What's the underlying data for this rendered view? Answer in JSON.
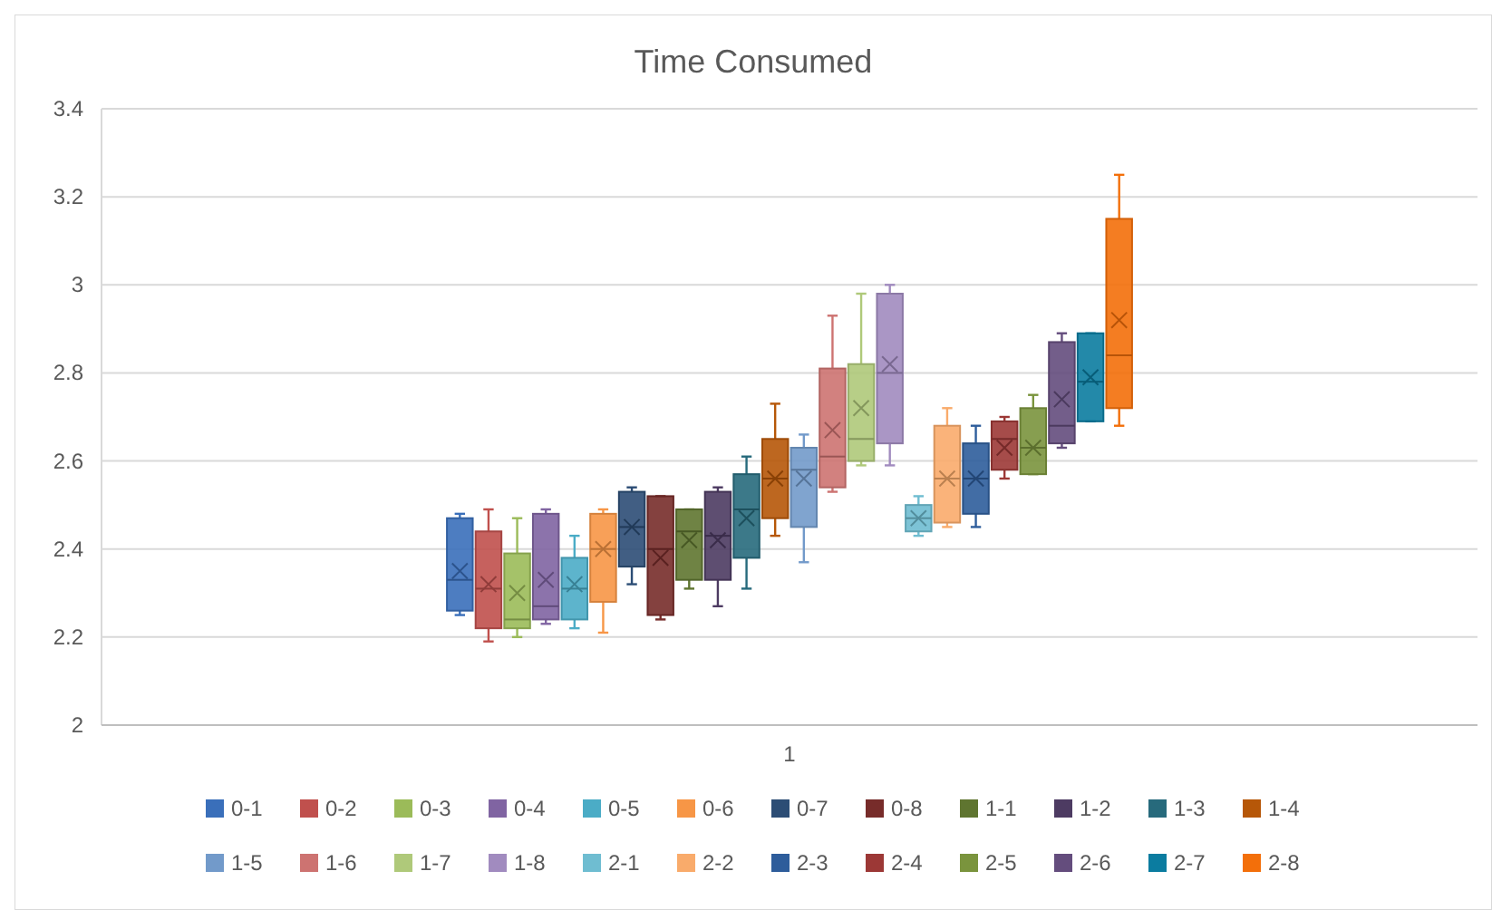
{
  "chart_data": {
    "type": "box",
    "title": "Time Consumed",
    "categories": [
      "1"
    ],
    "ylim": [
      2,
      3.4
    ],
    "yticks": [
      2,
      2.2,
      2.4,
      2.6,
      2.8,
      3,
      3.2,
      3.4
    ],
    "grid": "y",
    "legend": "bottom",
    "series": [
      {
        "name": "0-1",
        "color": "#3a6fba",
        "boxes": [
          {
            "low": 2.25,
            "q1": 2.26,
            "median": 2.33,
            "q3": 2.47,
            "high": 2.48,
            "mean": 2.35
          }
        ]
      },
      {
        "name": "0-2",
        "color": "#c0504d",
        "boxes": [
          {
            "low": 2.19,
            "q1": 2.22,
            "median": 2.31,
            "q3": 2.44,
            "high": 2.49,
            "mean": 2.32
          }
        ]
      },
      {
        "name": "0-3",
        "color": "#9bbb59",
        "boxes": [
          {
            "low": 2.2,
            "q1": 2.22,
            "median": 2.24,
            "q3": 2.39,
            "high": 2.47,
            "mean": 2.3
          }
        ]
      },
      {
        "name": "0-4",
        "color": "#8064a2",
        "boxes": [
          {
            "low": 2.23,
            "q1": 2.24,
            "median": 2.27,
            "q3": 2.48,
            "high": 2.49,
            "mean": 2.33
          }
        ]
      },
      {
        "name": "0-5",
        "color": "#4bacc6",
        "boxes": [
          {
            "low": 2.22,
            "q1": 2.24,
            "median": 2.31,
            "q3": 2.38,
            "high": 2.43,
            "mean": 2.32
          }
        ]
      },
      {
        "name": "0-6",
        "color": "#f79646",
        "boxes": [
          {
            "low": 2.21,
            "q1": 2.28,
            "median": 2.4,
            "q3": 2.48,
            "high": 2.49,
            "mean": 2.4
          }
        ]
      },
      {
        "name": "0-7",
        "color": "#2c4d75",
        "boxes": [
          {
            "low": 2.32,
            "q1": 2.36,
            "median": 2.45,
            "q3": 2.53,
            "high": 2.54,
            "mean": 2.45
          }
        ]
      },
      {
        "name": "0-8",
        "color": "#772c2a",
        "boxes": [
          {
            "low": 2.24,
            "q1": 2.25,
            "median": 2.4,
            "q3": 2.52,
            "high": 2.52,
            "mean": 2.38
          }
        ]
      },
      {
        "name": "1-1",
        "color": "#5f7530",
        "boxes": [
          {
            "low": 2.31,
            "q1": 2.33,
            "median": 2.44,
            "q3": 2.49,
            "high": 2.49,
            "mean": 2.42
          }
        ]
      },
      {
        "name": "1-2",
        "color": "#4d3b62",
        "boxes": [
          {
            "low": 2.27,
            "q1": 2.33,
            "median": 2.43,
            "q3": 2.53,
            "high": 2.54,
            "mean": 2.42
          }
        ]
      },
      {
        "name": "1-3",
        "color": "#276a7c",
        "boxes": [
          {
            "low": 2.31,
            "q1": 2.38,
            "median": 2.49,
            "q3": 2.57,
            "high": 2.61,
            "mean": 2.47
          }
        ]
      },
      {
        "name": "1-4",
        "color": "#b65708",
        "boxes": [
          {
            "low": 2.43,
            "q1": 2.47,
            "median": 2.56,
            "q3": 2.65,
            "high": 2.73,
            "mean": 2.56
          }
        ]
      },
      {
        "name": "1-5",
        "color": "#729aca",
        "boxes": [
          {
            "low": 2.37,
            "q1": 2.45,
            "median": 2.58,
            "q3": 2.63,
            "high": 2.66,
            "mean": 2.56
          }
        ]
      },
      {
        "name": "1-6",
        "color": "#cd7371",
        "boxes": [
          {
            "low": 2.53,
            "q1": 2.54,
            "median": 2.61,
            "q3": 2.81,
            "high": 2.93,
            "mean": 2.67
          }
        ]
      },
      {
        "name": "1-7",
        "color": "#afc97a",
        "boxes": [
          {
            "low": 2.59,
            "q1": 2.6,
            "median": 2.65,
            "q3": 2.82,
            "high": 2.98,
            "mean": 2.72
          }
        ]
      },
      {
        "name": "1-8",
        "color": "#a18bbf",
        "boxes": [
          {
            "low": 2.59,
            "q1": 2.64,
            "median": 2.8,
            "q3": 2.98,
            "high": 3.0,
            "mean": 2.82
          }
        ]
      },
      {
        "name": "2-1",
        "color": "#6fbdd1",
        "boxes": [
          {
            "low": 2.43,
            "q1": 2.44,
            "median": 2.47,
            "q3": 2.5,
            "high": 2.52,
            "mean": 2.47
          }
        ]
      },
      {
        "name": "2-2",
        "color": "#f9ab6b",
        "boxes": [
          {
            "low": 2.45,
            "q1": 2.46,
            "median": 2.56,
            "q3": 2.68,
            "high": 2.72,
            "mean": 2.56
          }
        ]
      },
      {
        "name": "2-3",
        "color": "#2e5d9b",
        "boxes": [
          {
            "low": 2.45,
            "q1": 2.48,
            "median": 2.56,
            "q3": 2.64,
            "high": 2.68,
            "mean": 2.56
          }
        ]
      },
      {
        "name": "2-4",
        "color": "#9c3836",
        "boxes": [
          {
            "low": 2.56,
            "q1": 2.58,
            "median": 2.65,
            "q3": 2.69,
            "high": 2.7,
            "mean": 2.63
          }
        ]
      },
      {
        "name": "2-5",
        "color": "#7a943d",
        "boxes": [
          {
            "low": 2.57,
            "q1": 2.57,
            "median": 2.63,
            "q3": 2.72,
            "high": 2.75,
            "mean": 2.63
          }
        ]
      },
      {
        "name": "2-6",
        "color": "#644d7d",
        "boxes": [
          {
            "low": 2.63,
            "q1": 2.64,
            "median": 2.68,
            "q3": 2.87,
            "high": 2.89,
            "mean": 2.74
          }
        ]
      },
      {
        "name": "2-7",
        "color": "#0b7ca0",
        "boxes": [
          {
            "low": 2.69,
            "q1": 2.69,
            "median": 2.78,
            "q3": 2.89,
            "high": 2.89,
            "mean": 2.79
          }
        ]
      },
      {
        "name": "2-8",
        "color": "#f36f0a",
        "boxes": [
          {
            "low": 2.68,
            "q1": 2.72,
            "median": 2.84,
            "q3": 3.15,
            "high": 3.25,
            "mean": 2.92
          }
        ]
      }
    ]
  }
}
